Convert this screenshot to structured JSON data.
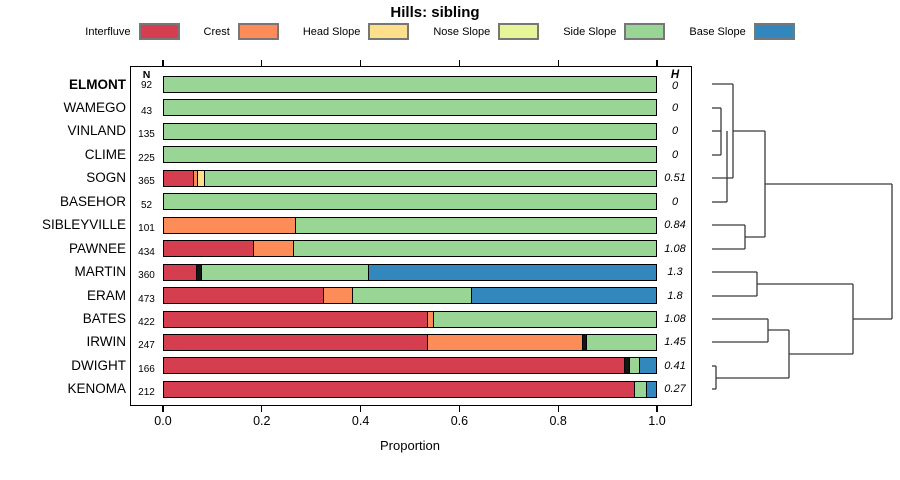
{
  "title": "Hills: sibling",
  "x_axis": {
    "label": "Proportion",
    "ticks": [
      "0.0",
      "0.2",
      "0.4",
      "0.6",
      "0.8",
      "1.0"
    ],
    "range": [
      0,
      1
    ]
  },
  "columns": {
    "n_header": "N",
    "h_header": "H"
  },
  "colors": {
    "Interfluve": "#d53e4f",
    "Crest": "#fc8d59",
    "Head Slope": "#fee08b",
    "Nose Slope": "#e6f598",
    "Side Slope": "#99d594",
    "Base Slope": "#3288bd",
    "sliver": "#151515"
  },
  "legend": [
    {
      "label": "Interfluve",
      "color": "#d53e4f"
    },
    {
      "label": "Crest",
      "color": "#fc8d59"
    },
    {
      "label": "Head Slope",
      "color": "#fee08b"
    },
    {
      "label": "Nose Slope",
      "color": "#e6f598"
    },
    {
      "label": "Side Slope",
      "color": "#99d594"
    },
    {
      "label": "Base Slope",
      "color": "#3288bd"
    }
  ],
  "chart_data": {
    "type": "bar",
    "orientation": "horizontal-stacked",
    "title": "Hills: sibling",
    "xlabel": "Proportion",
    "xlim": [
      0,
      1
    ],
    "categories": [
      "Interfluve",
      "Crest",
      "Head Slope",
      "Nose Slope",
      "Side Slope",
      "Base Slope"
    ],
    "rows": [
      {
        "name": "ELMONT",
        "bold": true,
        "n": "92",
        "h": "0",
        "segments": [
          {
            "category": "Side Slope",
            "value": 1.0
          }
        ]
      },
      {
        "name": "WAMEGO",
        "bold": false,
        "n": "43",
        "h": "0",
        "segments": [
          {
            "category": "Side Slope",
            "value": 1.0
          }
        ]
      },
      {
        "name": "VINLAND",
        "bold": false,
        "n": "135",
        "h": "0",
        "segments": [
          {
            "category": "Side Slope",
            "value": 1.0
          }
        ]
      },
      {
        "name": "CLIME",
        "bold": false,
        "n": "225",
        "h": "0",
        "segments": [
          {
            "category": "Side Slope",
            "value": 1.0
          }
        ]
      },
      {
        "name": "SOGN",
        "bold": false,
        "n": "365",
        "h": "0.51",
        "segments": [
          {
            "category": "Interfluve",
            "value": 0.059
          },
          {
            "category": "Crest",
            "value": 0.008
          },
          {
            "category": "Head Slope",
            "value": 0.014
          },
          {
            "category": "Side Slope",
            "value": 0.919
          }
        ]
      },
      {
        "name": "BASEHOR",
        "bold": false,
        "n": "52",
        "h": "0",
        "segments": [
          {
            "category": "Side Slope",
            "value": 1.0
          }
        ]
      },
      {
        "name": "SIBLEYVILLE",
        "bold": false,
        "n": "101",
        "h": "0.84",
        "segments": [
          {
            "category": "Crest",
            "value": 0.267
          },
          {
            "category": "Side Slope",
            "value": 0.733
          }
        ]
      },
      {
        "name": "PAWNEE",
        "bold": false,
        "n": "434",
        "h": "1.08",
        "segments": [
          {
            "category": "Interfluve",
            "value": 0.18
          },
          {
            "category": "Crest",
            "value": 0.083
          },
          {
            "category": "Side Slope",
            "value": 0.737
          }
        ]
      },
      {
        "name": "MARTIN",
        "bold": false,
        "n": "360",
        "h": "1.3",
        "segments": [
          {
            "category": "Interfluve",
            "value": 0.065
          },
          {
            "category": "sliver",
            "value": 0.01
          },
          {
            "category": "Side Slope",
            "value": 0.34
          },
          {
            "category": "Base Slope",
            "value": 0.585
          }
        ]
      },
      {
        "name": "ERAM",
        "bold": false,
        "n": "473",
        "h": "1.8",
        "segments": [
          {
            "category": "Interfluve",
            "value": 0.324
          },
          {
            "category": "Crest",
            "value": 0.058
          },
          {
            "category": "Side Slope",
            "value": 0.243
          },
          {
            "category": "Base Slope",
            "value": 0.375
          }
        ]
      },
      {
        "name": "BATES",
        "bold": false,
        "n": "422",
        "h": "1.08",
        "segments": [
          {
            "category": "Interfluve",
            "value": 0.534
          },
          {
            "category": "Crest",
            "value": 0.012
          },
          {
            "category": "Side Slope",
            "value": 0.454
          }
        ]
      },
      {
        "name": "IRWIN",
        "bold": false,
        "n": "247",
        "h": "1.45",
        "segments": [
          {
            "category": "Interfluve",
            "value": 0.534
          },
          {
            "category": "Crest",
            "value": 0.316
          },
          {
            "category": "sliver",
            "value": 0.008
          },
          {
            "category": "Side Slope",
            "value": 0.142
          }
        ]
      },
      {
        "name": "DWIGHT",
        "bold": false,
        "n": "166",
        "h": "0.41",
        "segments": [
          {
            "category": "Interfluve",
            "value": 0.935
          },
          {
            "category": "sliver",
            "value": 0.01
          },
          {
            "category": "Side Slope",
            "value": 0.02
          },
          {
            "category": "Base Slope",
            "value": 0.035
          }
        ]
      },
      {
        "name": "KENOMA",
        "bold": false,
        "n": "212",
        "h": "0.27",
        "segments": [
          {
            "category": "Interfluve",
            "value": 0.955
          },
          {
            "category": "Side Slope",
            "value": 0.024
          },
          {
            "category": "Base Slope",
            "value": 0.021
          }
        ]
      }
    ],
    "dendrogram": {
      "description": "cluster tree at right of bars, line segments in 200x350 local coords",
      "segments": [
        [
          12,
          24,
          33,
          24
        ],
        [
          12,
          48,
          21,
          48
        ],
        [
          12,
          71,
          21,
          71
        ],
        [
          12,
          95,
          21,
          95
        ],
        [
          21,
          48,
          21,
          95
        ],
        [
          27,
          71,
          27,
          142
        ],
        [
          12,
          118,
          33,
          118
        ],
        [
          12,
          142,
          27,
          142
        ],
        [
          33,
          24,
          33,
          118
        ],
        [
          33,
          71,
          65,
          71
        ],
        [
          12,
          165,
          45,
          165
        ],
        [
          12,
          189,
          45,
          189
        ],
        [
          45,
          165,
          45,
          189
        ],
        [
          45,
          177,
          65,
          177
        ],
        [
          65,
          71,
          65,
          177
        ],
        [
          65,
          124,
          192,
          124
        ],
        [
          12,
          212,
          57,
          212
        ],
        [
          12,
          236,
          57,
          236
        ],
        [
          57,
          212,
          57,
          236
        ],
        [
          57,
          224,
          153,
          224
        ],
        [
          12,
          259,
          68,
          259
        ],
        [
          12,
          282,
          68,
          282
        ],
        [
          68,
          259,
          68,
          282
        ],
        [
          68,
          270,
          89,
          270
        ],
        [
          12,
          306,
          16,
          306
        ],
        [
          12,
          329,
          16,
          329
        ],
        [
          16,
          306,
          16,
          329
        ],
        [
          16,
          318,
          89,
          318
        ],
        [
          89,
          270,
          89,
          318
        ],
        [
          89,
          294,
          153,
          294
        ],
        [
          153,
          224,
          153,
          294
        ],
        [
          153,
          259,
          192,
          259
        ],
        [
          192,
          124,
          192,
          259
        ]
      ]
    }
  }
}
